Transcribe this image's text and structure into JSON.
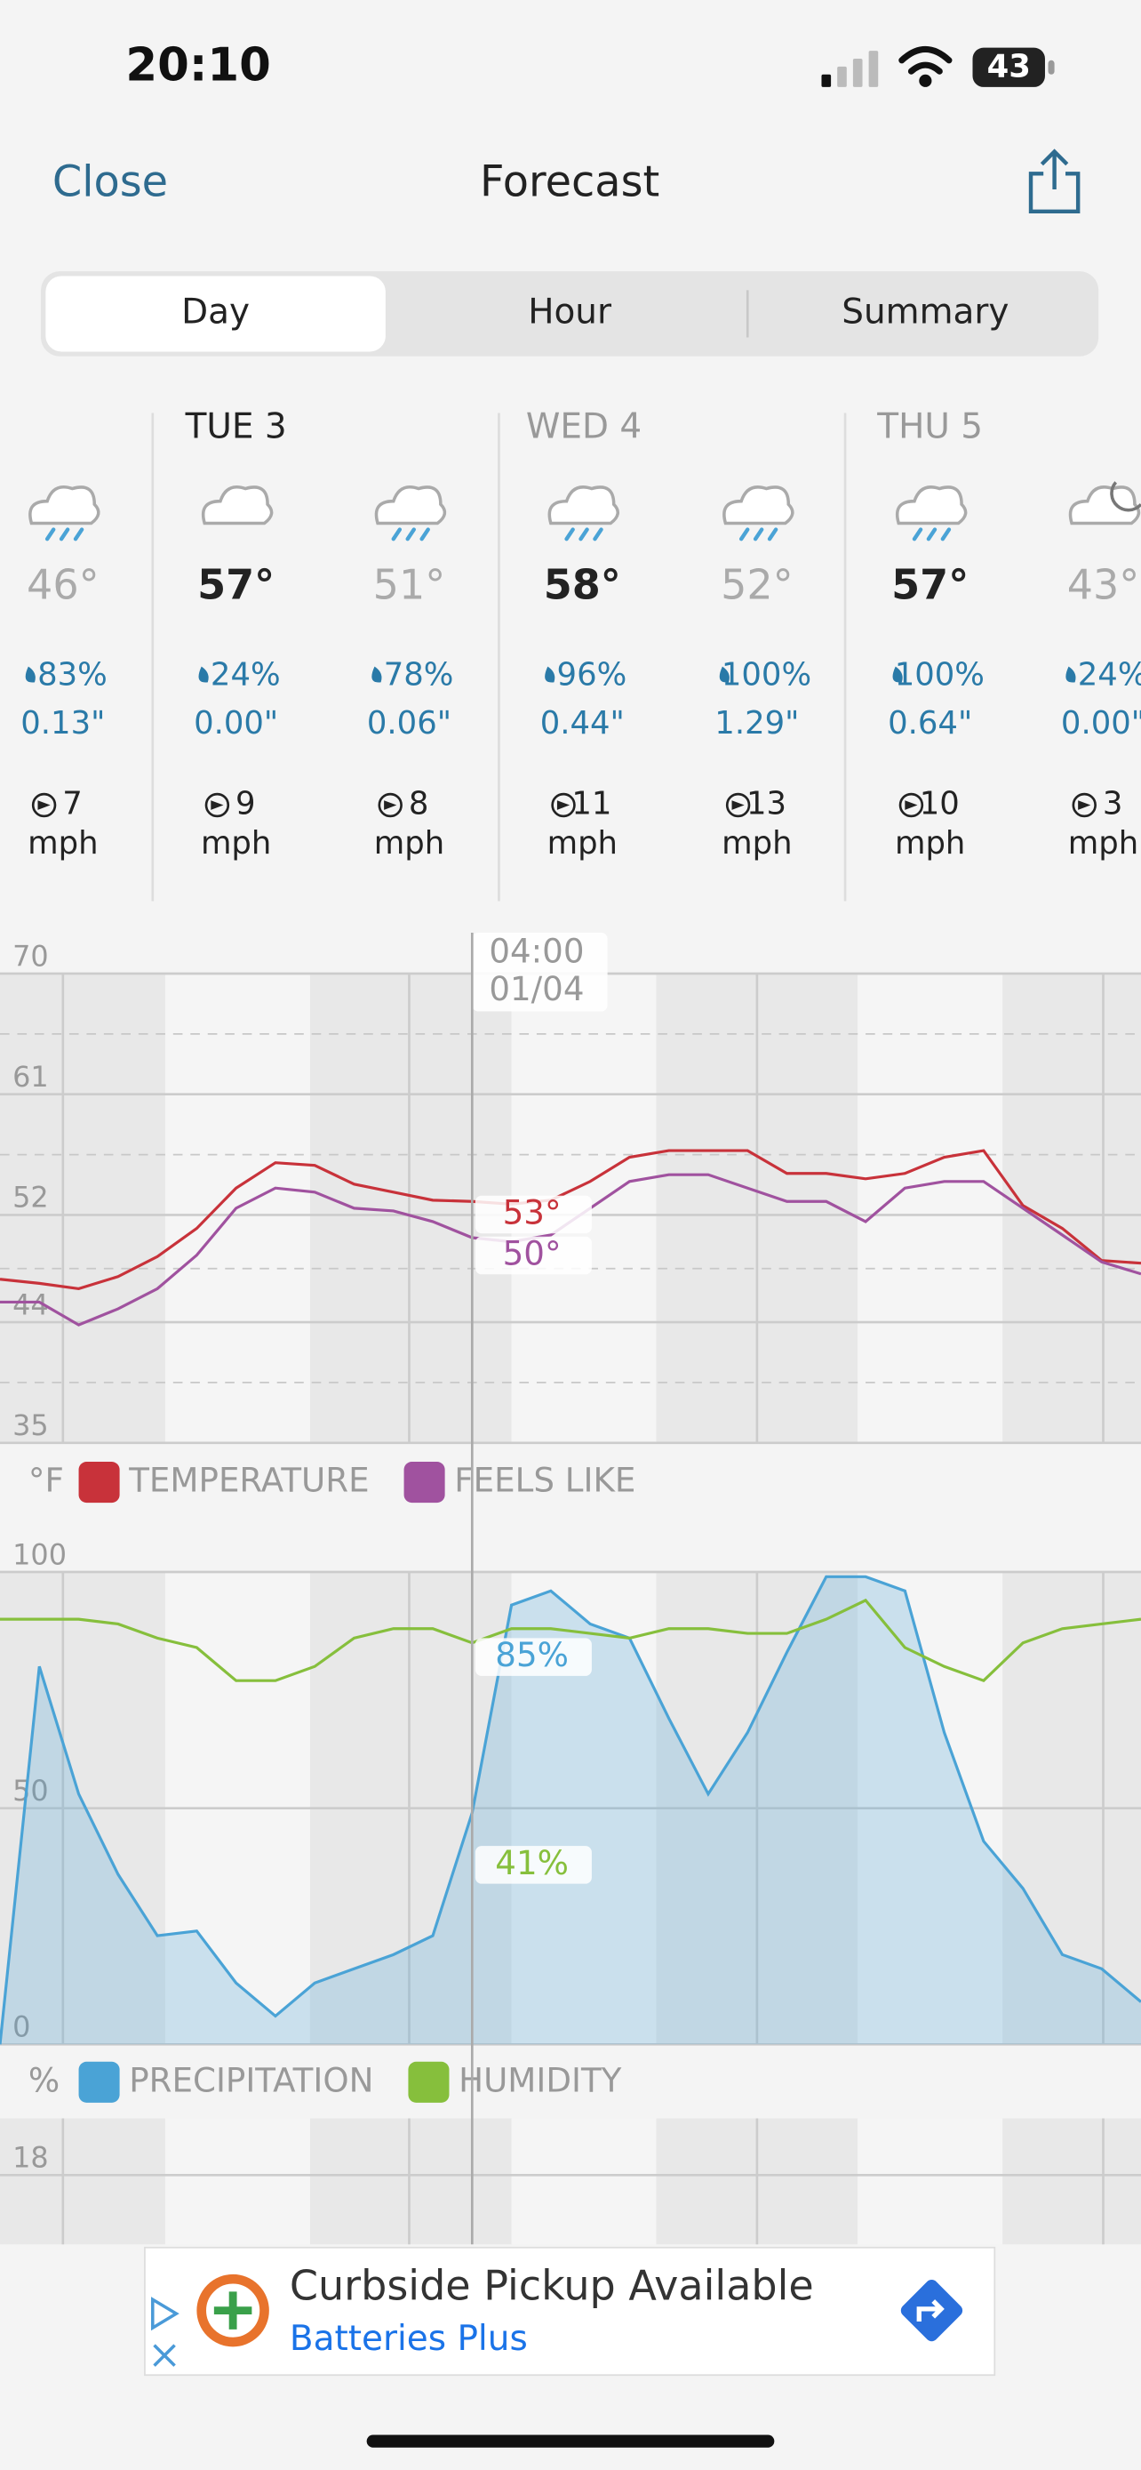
{
  "status_bar": {
    "time": "20:10",
    "battery": "43"
  },
  "nav": {
    "close": "Close",
    "title": "Forecast"
  },
  "tabs": [
    "Day",
    "Hour",
    "Summary"
  ],
  "days": [
    "TUE 3",
    "WED 4",
    "THU 5"
  ],
  "periods": [
    {
      "temp": "46°",
      "precip_chance": "83%",
      "precip_amount": "0.13\"",
      "wind": "7",
      "wind_unit": "mph"
    },
    {
      "temp": "57°",
      "precip_chance": "24%",
      "precip_amount": "0.00\"",
      "wind": "9",
      "wind_unit": "mph"
    },
    {
      "temp": "51°",
      "precip_chance": "78%",
      "precip_amount": "0.06\"",
      "wind": "8",
      "wind_unit": "mph"
    },
    {
      "temp": "58°",
      "precip_chance": "96%",
      "precip_amount": "0.44\"",
      "wind": "11",
      "wind_unit": "mph"
    },
    {
      "temp": "52°",
      "precip_chance": "100%",
      "precip_amount": "1.29\"",
      "wind": "13",
      "wind_unit": "mph"
    },
    {
      "temp": "57°",
      "precip_chance": "100%",
      "precip_amount": "0.64\"",
      "wind": "10",
      "wind_unit": "mph"
    },
    {
      "temp": "43°",
      "precip_chance": "24%",
      "precip_amount": "0.00\"",
      "wind": "3",
      "wind_unit": "mph"
    }
  ],
  "chart_data": [
    {
      "type": "line",
      "y_unit": "°F",
      "ylim": [
        35,
        70
      ],
      "yticks": [
        35,
        44,
        52,
        61,
        70
      ],
      "grid": true,
      "cursor_label": [
        "04:00",
        "01/04"
      ],
      "annotations": [
        "53°",
        "50°"
      ],
      "series": [
        {
          "name": "TEMPERATURE",
          "color": "#c8323a",
          "values": [
            47.2,
            46.9,
            46.5,
            47.4,
            48.9,
            51,
            54,
            55.9,
            55.7,
            54.3,
            53.7,
            53.1,
            53,
            52.8,
            53.1,
            54.5,
            56.3,
            56.8,
            56.8,
            56.8,
            55.1,
            55.1,
            54.7,
            55.1,
            56.3,
            56.8,
            52.7,
            51,
            48.6,
            48.4
          ]
        },
        {
          "name": "FEELS LIKE",
          "color": "#a0529f",
          "values": [
            45.5,
            45.5,
            43.8,
            45,
            46.5,
            49,
            52.5,
            54,
            53.7,
            52.5,
            52.3,
            51.5,
            50.3,
            50,
            50.5,
            52.5,
            54.5,
            55,
            55,
            54,
            53,
            53,
            51.5,
            54,
            54.5,
            54.5,
            52.5,
            50.5,
            48.5,
            47.6
          ]
        }
      ]
    },
    {
      "type": "line",
      "y_unit": "%",
      "ylim": [
        0,
        100
      ],
      "yticks": [
        0,
        50,
        100
      ],
      "grid": true,
      "annotations": [
        "85%",
        "41%"
      ],
      "series": [
        {
          "name": "PRECIPITATION",
          "color": "#4aa3d6",
          "area": true,
          "values": [
            0,
            80,
            53,
            36,
            23,
            24,
            13,
            6,
            13,
            16,
            19,
            23,
            49,
            93,
            96,
            89,
            86,
            69,
            53,
            66,
            83,
            99,
            99,
            96,
            66,
            43,
            33,
            19,
            16,
            9
          ]
        },
        {
          "name": "HUMIDITY",
          "color": "#86bf3c",
          "values": [
            90,
            90,
            90,
            89,
            86,
            84,
            77,
            77,
            80,
            86,
            88,
            88,
            85,
            88,
            88,
            87,
            86,
            88,
            88,
            87,
            87,
            90,
            94,
            84,
            80,
            77,
            85,
            88,
            89,
            90
          ]
        }
      ]
    },
    {
      "type": "line",
      "yticks": [
        18
      ],
      "grid": true
    }
  ],
  "ad": {
    "headline": "Curbside Pickup Available",
    "advertiser": "Batteries Plus"
  }
}
